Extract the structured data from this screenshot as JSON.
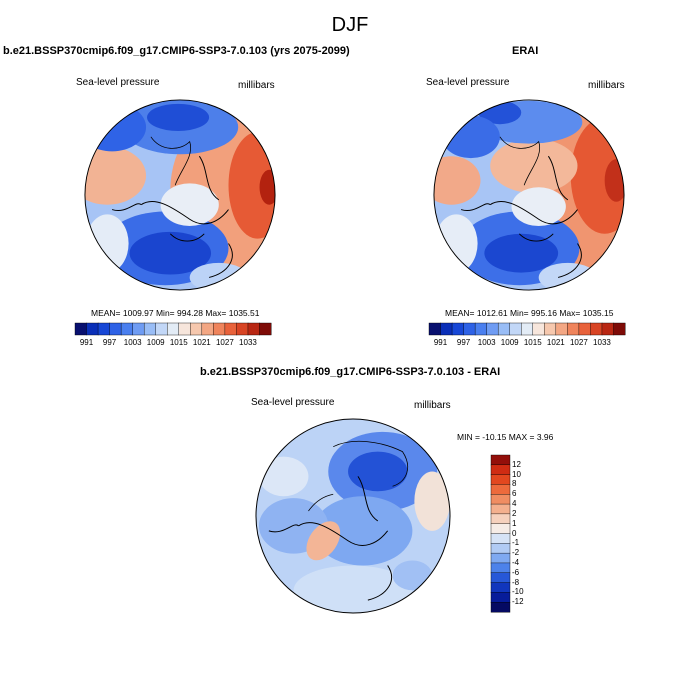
{
  "figure": {
    "title": "DJF"
  },
  "panels": {
    "model": {
      "title": "b.e21.BSSP370cmip6.f09_g17.CMIP6-SSP3-7.0.103 (yrs 2075-2099)",
      "variable": "Sea-level pressure",
      "units": "millibars",
      "stats": "MEAN= 1009.97  Min= 994.28  Max= 1035.51"
    },
    "obs": {
      "title": "ERAI",
      "variable": "Sea-level pressure",
      "units": "millibars",
      "stats": "MEAN= 1012.61  Min= 995.16  Max= 1035.15"
    },
    "diff": {
      "title": "b.e21.BSSP370cmip6.f09_g17.CMIP6-SSP3-7.0.103 - ERAI",
      "variable": "Sea-level pressure",
      "units": "millibars",
      "stats": "MIN = -10.15 MAX =   3.96"
    }
  },
  "colorbar_main": {
    "labels": [
      "991",
      "997",
      "1003",
      "1009",
      "1015",
      "1021",
      "1027",
      "1033"
    ],
    "colors": [
      "#08106f",
      "#0a2fb8",
      "#1747d6",
      "#2e62e6",
      "#4a7fef",
      "#6f9cf3",
      "#99bdf6",
      "#c2d7f7",
      "#e3ecf6",
      "#f7e6dc",
      "#f6c8ae",
      "#f3a784",
      "#ef845c",
      "#e8623b",
      "#d84424",
      "#b92713",
      "#7e0b07"
    ]
  },
  "colorbar_diff": {
    "labels": [
      "12",
      "10",
      "8",
      "6",
      "4",
      "2",
      "1",
      "0",
      "-1",
      "-2",
      "-4",
      "-6",
      "-8",
      "-10",
      "-12"
    ],
    "colors": [
      "#930f0a",
      "#cf2c13",
      "#e2471f",
      "#ed6a3c",
      "#f08d62",
      "#f4b08e",
      "#f6d1bd",
      "#f6ece6",
      "#d6e3f6",
      "#b1cbf4",
      "#7fa9f1",
      "#4d82ea",
      "#2758d8",
      "#1136bd",
      "#071c9a",
      "#050a62"
    ]
  },
  "chart_data": [
    {
      "type": "heatmap",
      "title": "b.e21.BSSP370cmip6.f09_g17.CMIP6-SSP3-7.0.103 (yrs 2075-2099)",
      "variable": "Sea-level pressure",
      "units": "millibars",
      "mean": 1009.97,
      "min": 994.28,
      "max": 1035.51,
      "levels": [
        991,
        994,
        997,
        1000,
        1003,
        1006,
        1009,
        1012,
        1015,
        1018,
        1021,
        1024,
        1027,
        1030,
        1033,
        1036
      ]
    },
    {
      "type": "heatmap",
      "title": "ERAI",
      "variable": "Sea-level pressure",
      "units": "millibars",
      "mean": 1012.61,
      "min": 995.16,
      "max": 1035.15,
      "levels": [
        991,
        994,
        997,
        1000,
        1003,
        1006,
        1009,
        1012,
        1015,
        1018,
        1021,
        1024,
        1027,
        1030,
        1033,
        1036
      ]
    },
    {
      "type": "heatmap",
      "title": "b.e21.BSSP370cmip6.f09_g17.CMIP6-SSP3-7.0.103 - ERAI",
      "variable": "Sea-level pressure",
      "units": "millibars",
      "min": -10.15,
      "max": 3.96,
      "levels": [
        -12,
        -10,
        -8,
        -6,
        -4,
        -2,
        -1,
        0,
        1,
        2,
        4,
        6,
        8,
        10,
        12
      ]
    }
  ]
}
